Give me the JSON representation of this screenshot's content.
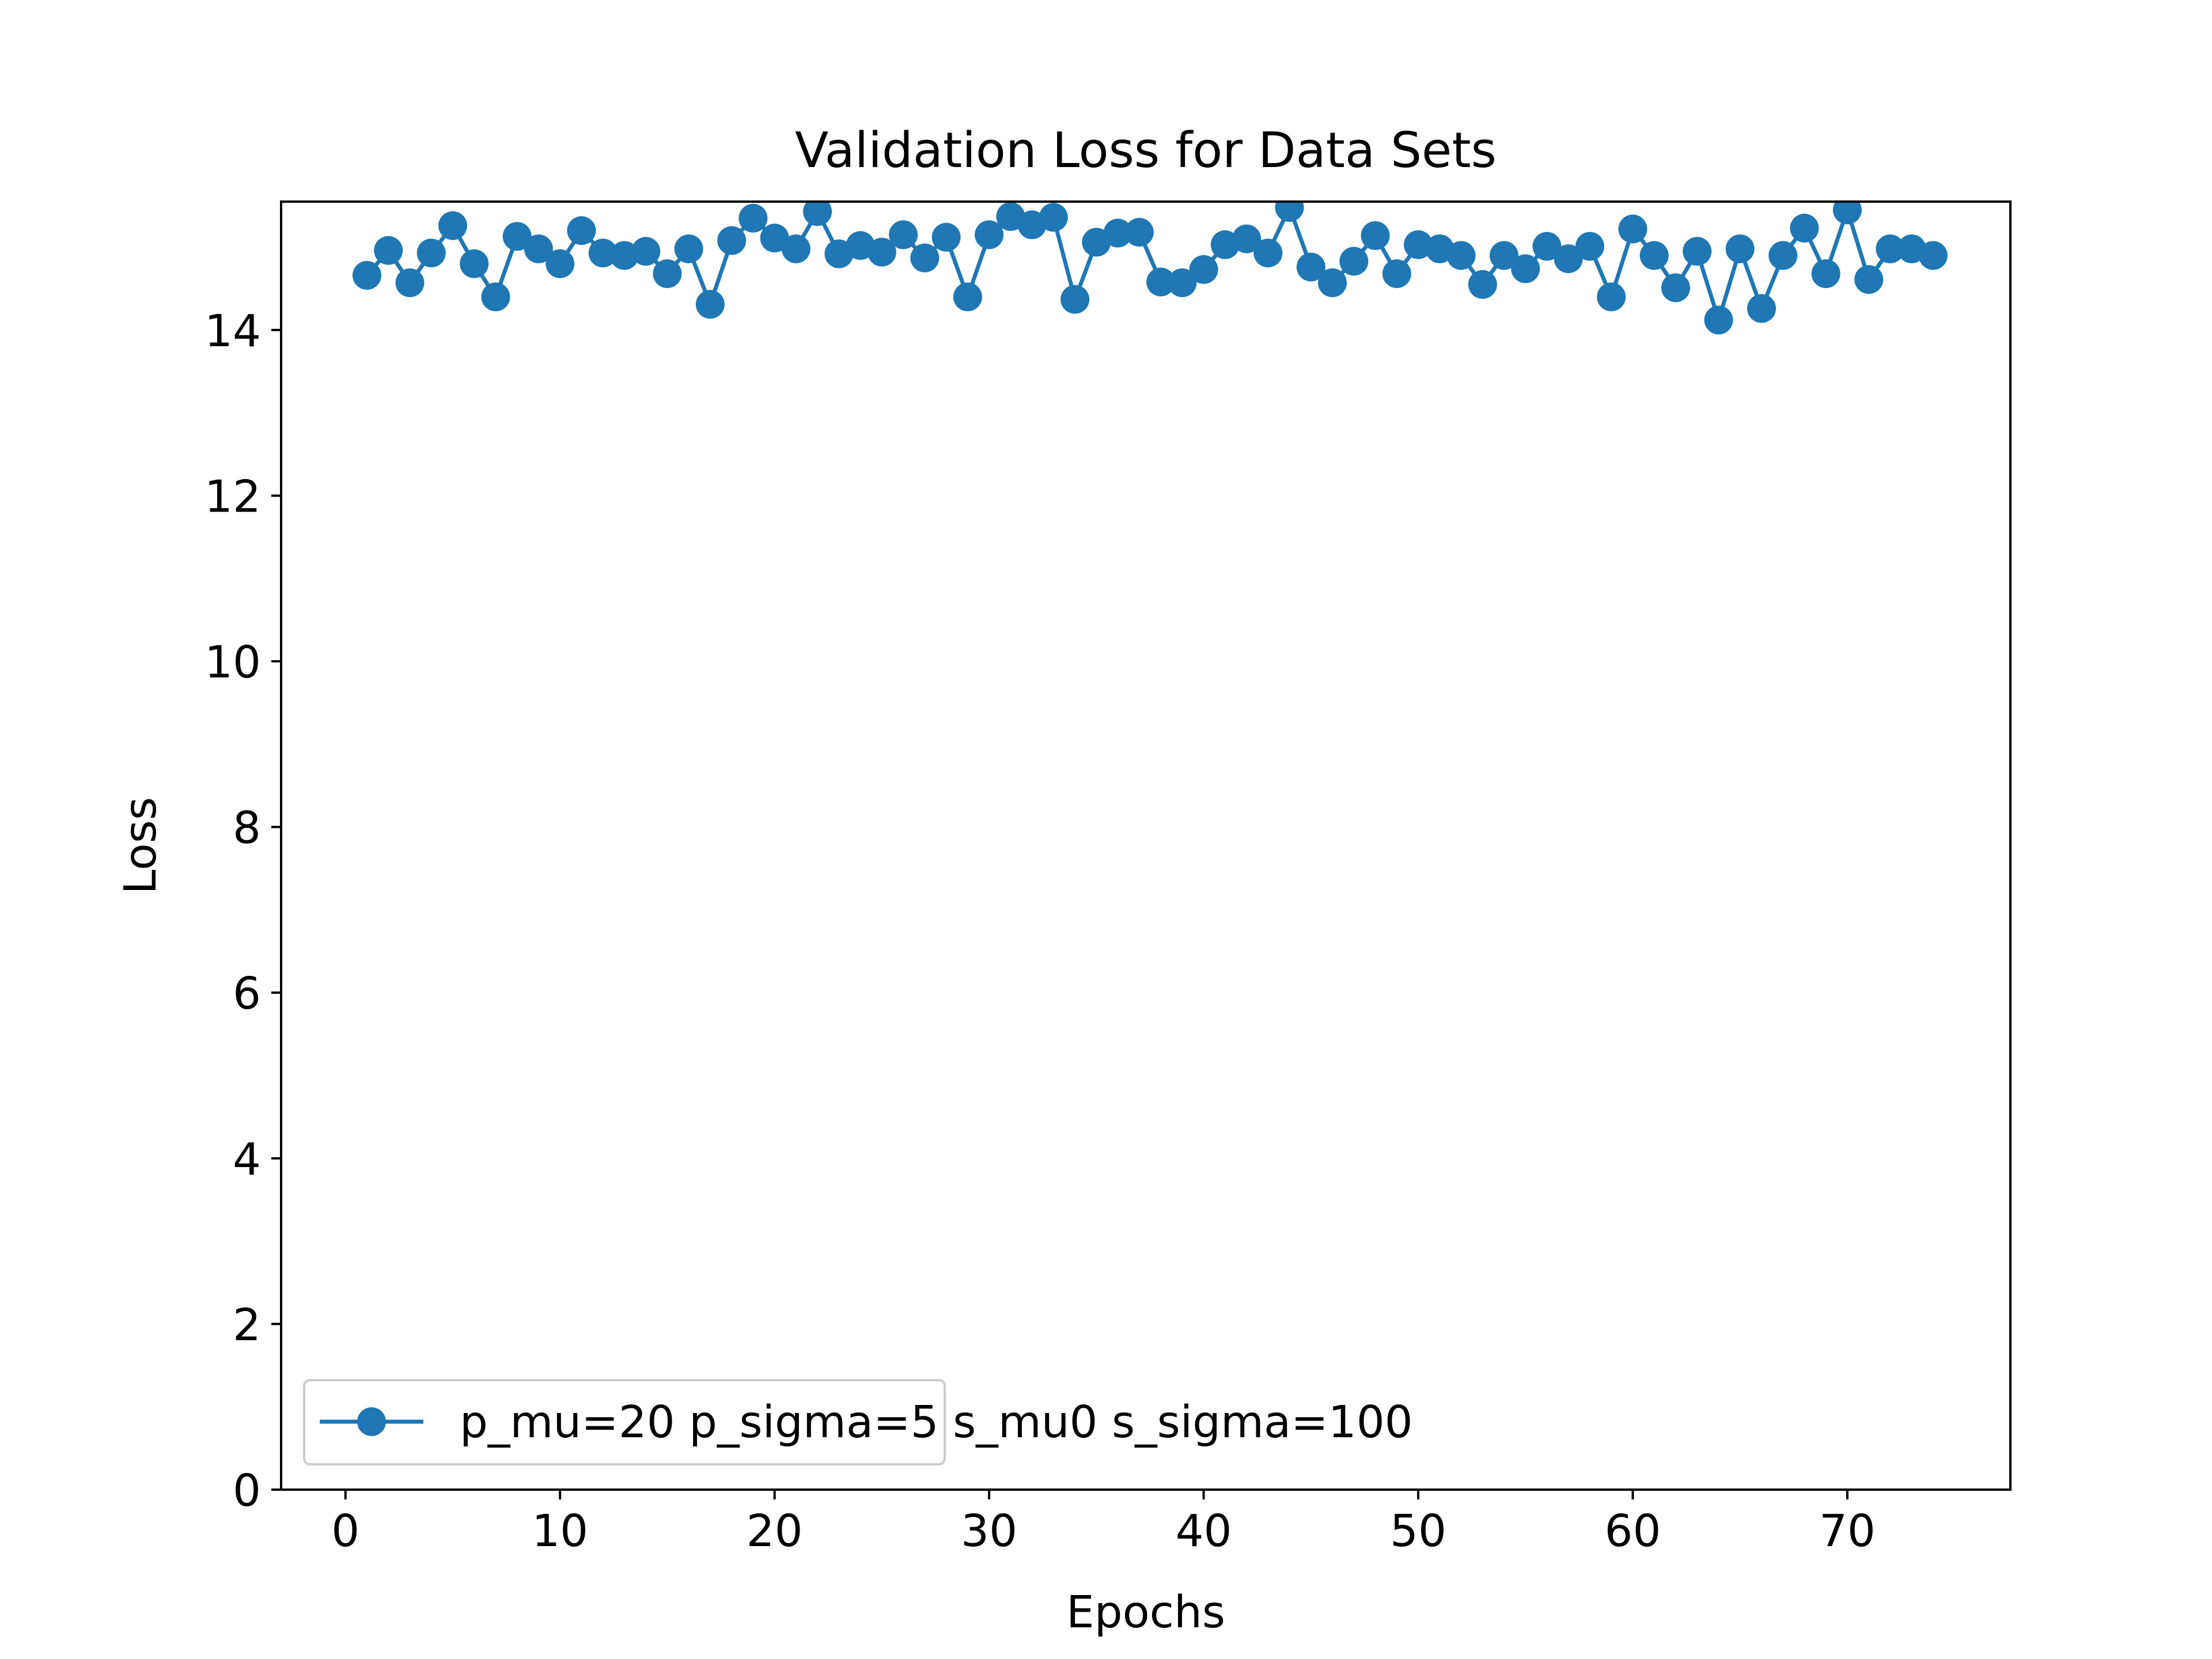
{
  "chart_data": {
    "type": "line",
    "title": "Validation Loss for Data Sets",
    "xlabel": "Epochs",
    "ylabel": "Loss",
    "xlim": [
      -3,
      77.6
    ],
    "ylim": [
      0,
      15.55
    ],
    "xticks": [
      0,
      10,
      20,
      30,
      40,
      50,
      60,
      70
    ],
    "yticks": [
      0,
      2,
      4,
      6,
      8,
      10,
      12,
      14
    ],
    "grid": false,
    "legend": {
      "location": "lower left"
    },
    "series": [
      {
        "name": "p_mu=20 p_sigma=5 s_mu0 s_sigma=100",
        "color": "#1f77b4",
        "marker": "circle",
        "x": [
          1,
          2,
          3,
          4,
          5,
          6,
          7,
          8,
          9,
          10,
          11,
          12,
          13,
          14,
          15,
          16,
          17,
          18,
          19,
          20,
          21,
          22,
          23,
          24,
          25,
          26,
          27,
          28,
          29,
          30,
          31,
          32,
          33,
          34,
          35,
          36,
          37,
          38,
          39,
          40,
          41,
          42,
          43,
          44,
          45,
          46,
          47,
          48,
          49,
          50,
          51,
          52,
          53,
          54,
          55,
          56,
          57,
          58,
          59,
          60,
          61,
          62,
          63,
          64,
          65,
          66,
          67,
          68,
          69,
          70,
          71,
          72,
          73,
          74
        ],
        "y": [
          14.66,
          14.96,
          14.57,
          14.93,
          15.26,
          14.8,
          14.4,
          15.13,
          14.98,
          14.8,
          15.2,
          14.93,
          14.9,
          14.95,
          14.68,
          14.98,
          14.31,
          15.08,
          15.35,
          15.11,
          14.98,
          15.43,
          14.92,
          15.02,
          14.94,
          15.15,
          14.87,
          15.12,
          14.4,
          15.15,
          15.37,
          15.27,
          15.36,
          14.37,
          15.06,
          15.17,
          15.18,
          14.58,
          14.57,
          14.73,
          15.03,
          15.1,
          14.93,
          15.48,
          14.76,
          14.57,
          14.83,
          15.14,
          14.68,
          15.03,
          14.98,
          14.9,
          14.55,
          14.9,
          14.74,
          15.01,
          14.86,
          15.01,
          14.4,
          15.22,
          14.9,
          14.51,
          14.95,
          14.12,
          14.98,
          14.26,
          14.9,
          15.23,
          14.68,
          15.45,
          14.61,
          14.98,
          14.98,
          14.9
        ]
      }
    ]
  }
}
